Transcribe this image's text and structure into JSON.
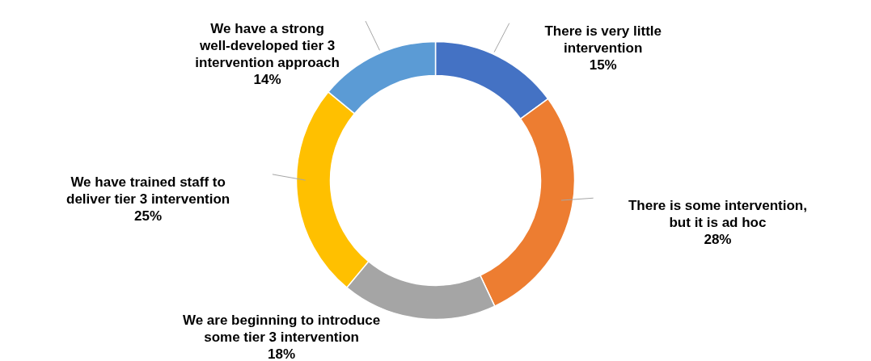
{
  "chart_data": {
    "type": "donut",
    "categories": [
      "There is very little intervention",
      "There is some intervention, but it is ad hoc",
      "We are beginning to introduce some tier 3 intervention",
      "We have trained staff to deliver tier 3 intervention",
      "We have a strong well-developed tier 3 intervention approach"
    ],
    "values": [
      15,
      28,
      18,
      25,
      14
    ],
    "colors": [
      "#4472c4",
      "#ed7d31",
      "#a5a5a5",
      "#ffc000",
      "#5b9bd5"
    ],
    "value_labels": [
      "15%",
      "28%",
      "18%",
      "25%",
      "14%"
    ]
  }
}
